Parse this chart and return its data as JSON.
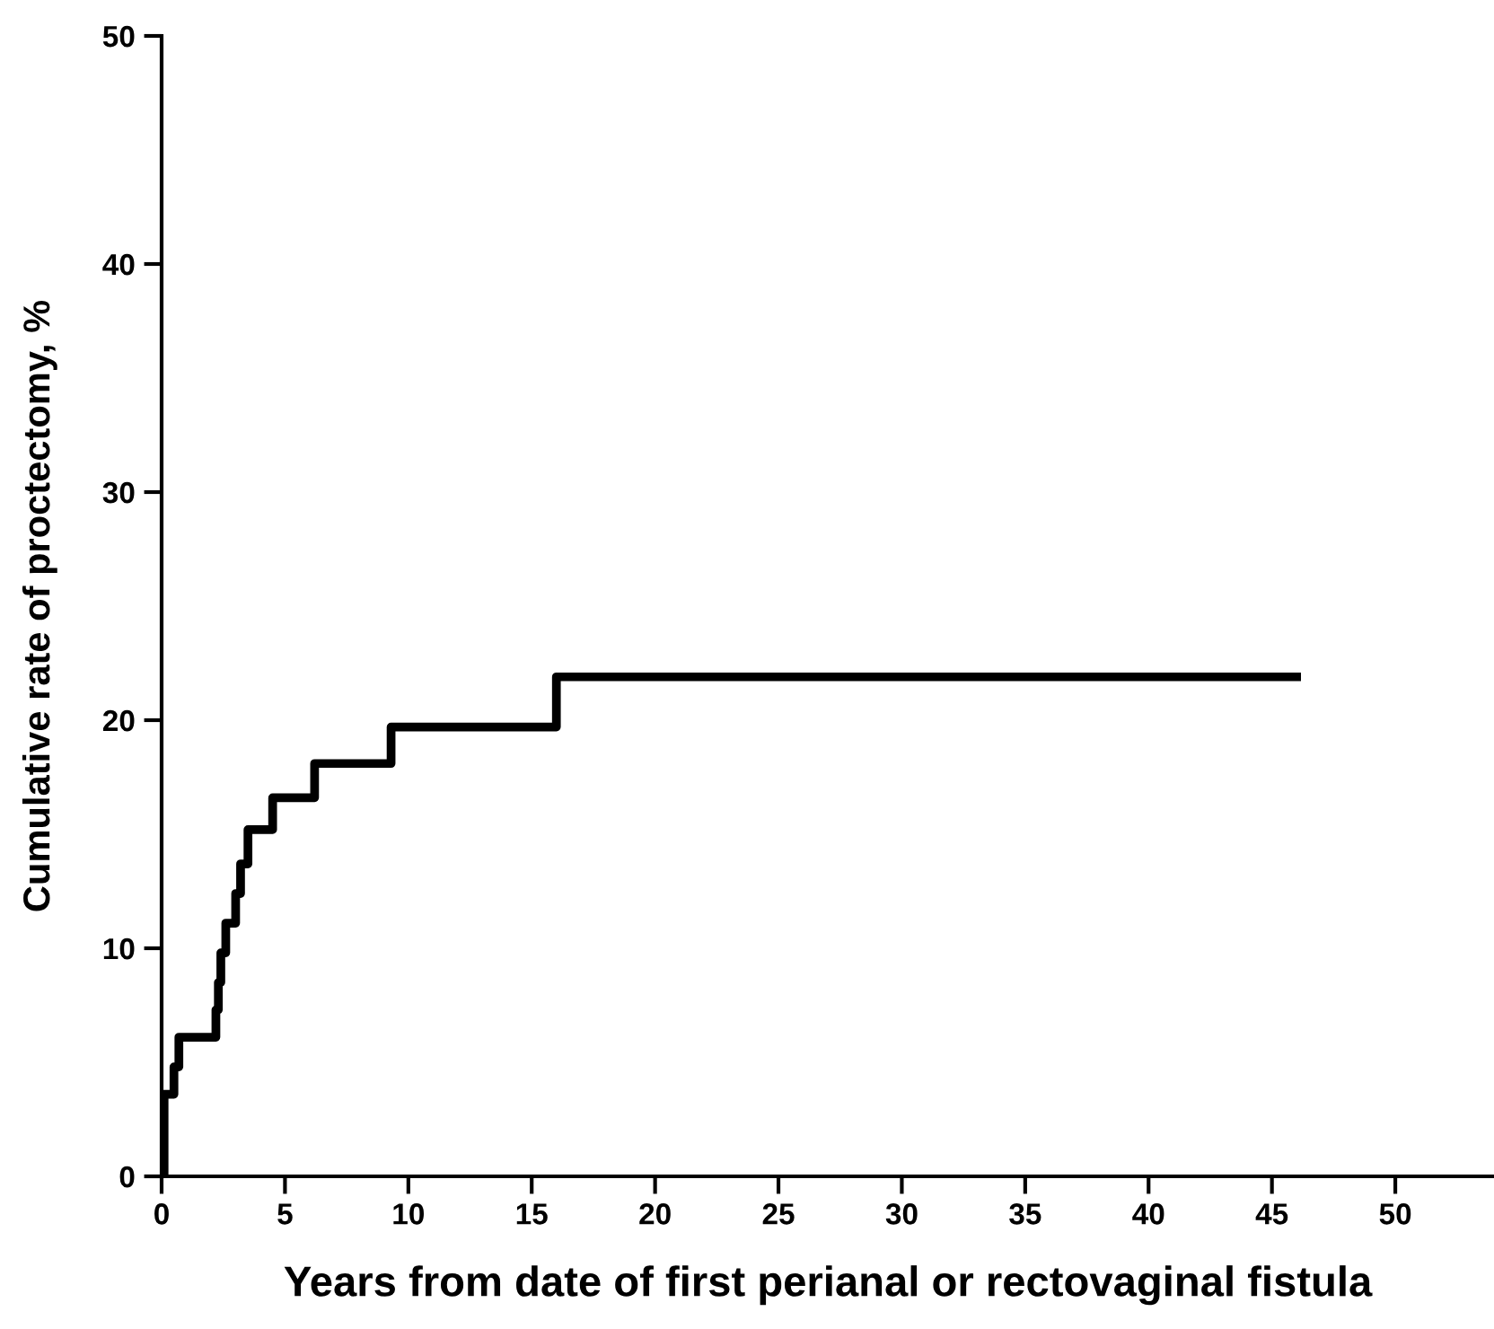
{
  "chart_data": {
    "type": "step",
    "xlabel": "Years from date of first perianal or rectovaginal fistula",
    "ylabel": "Cumulative rate of proctectomy, %",
    "x": [
      0,
      0.1,
      0.5,
      0.7,
      2.2,
      2.3,
      2.4,
      2.6,
      3.0,
      3.2,
      3.5,
      4.5,
      6.2,
      9.3,
      16.0,
      46.0
    ],
    "series": [
      {
        "color": "#000000",
        "values": [
          0,
          3.6,
          4.8,
          6.1,
          7.3,
          8.5,
          9.8,
          11.1,
          12.4,
          13.7,
          15.2,
          16.6,
          18.1,
          19.7,
          21.9,
          21.9
        ]
      }
    ],
    "xlim": [
      0,
      54
    ],
    "xticks": [
      0,
      5,
      10,
      15,
      20,
      25,
      30,
      35,
      40,
      45,
      50
    ],
    "ylim": [
      0,
      50
    ],
    "yticks": [
      0,
      10,
      20,
      30,
      40,
      50
    ],
    "grid": false,
    "legend": false,
    "line_style": "solid"
  }
}
